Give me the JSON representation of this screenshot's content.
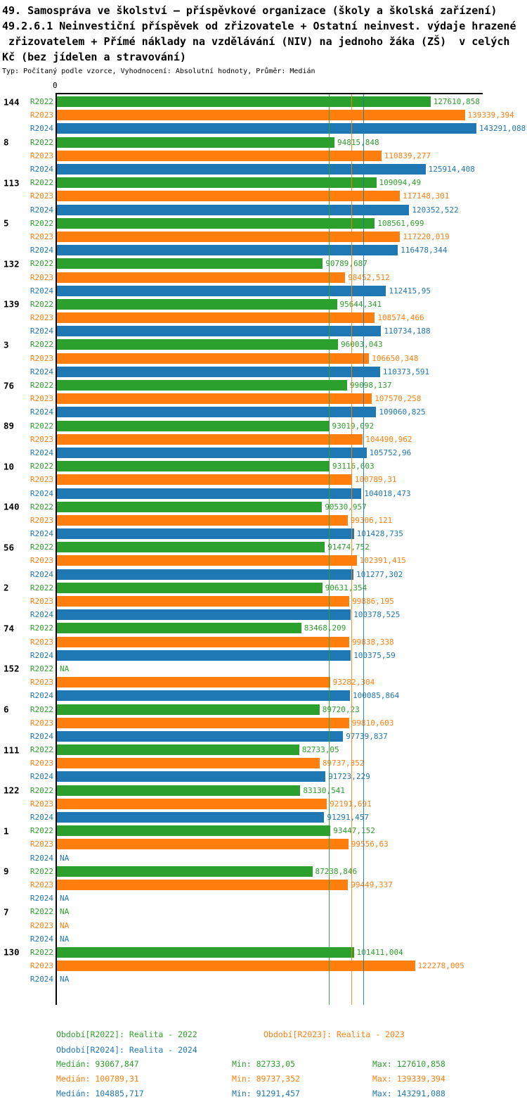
{
  "header": {
    "title_lines": [
      "49. Samospráva ve školství – příspěvkové organizace (školy a školská zařízení)",
      "49.2.6.1 Neinvestiční příspěvek od zřizovatele + Ostatní neinvest. výdaje hrazené",
      " zřizovatelem + Přímé náklady na vzdělávání (NIV) na jednoho žáka (ZŠ)  v celých",
      "Kč (bez jídelen a stravování)"
    ],
    "meta": "Typ: Počítaný podle vzorce, Vyhodnocení: Absolutní hodnoty, Průměr: Medián"
  },
  "chart_data": {
    "type": "bar",
    "orientation": "horizontal",
    "x_origin_label": "0",
    "xlim": [
      0,
      147000
    ],
    "xmax_value": 143291.088,
    "na_label": "NA",
    "grid": false,
    "legend_position": "bottom",
    "series": [
      {
        "name": "R2022",
        "color": "#2ca02c",
        "median": 93067.847
      },
      {
        "name": "R2023",
        "color": "#ff7f0e",
        "median": 100789.31
      },
      {
        "name": "R2024",
        "color": "#1f77b4",
        "median": 104885.717
      }
    ],
    "groups": [
      {
        "id": "144",
        "values": [
          127610.858,
          139339.394,
          143291.088
        ],
        "labels": [
          "127610,858",
          "139339,394",
          "143291,088"
        ]
      },
      {
        "id": "8",
        "values": [
          94815.848,
          110839.277,
          125914.408
        ],
        "labels": [
          "94815,848",
          "110839,277",
          "125914,408"
        ]
      },
      {
        "id": "113",
        "values": [
          109094.49,
          117148.301,
          120352.522
        ],
        "labels": [
          "109094,49",
          "117148,301",
          "120352,522"
        ]
      },
      {
        "id": "5",
        "values": [
          108561.699,
          117220.019,
          116478.344
        ],
        "labels": [
          "108561,699",
          "117220,019",
          "116478,344"
        ]
      },
      {
        "id": "132",
        "values": [
          90789.687,
          98452.512,
          112415.95
        ],
        "labels": [
          "90789,687",
          "98452,512",
          "112415,95"
        ]
      },
      {
        "id": "139",
        "values": [
          95644.341,
          108574.466,
          110734.188
        ],
        "labels": [
          "95644,341",
          "108574,466",
          "110734,188"
        ]
      },
      {
        "id": "3",
        "values": [
          96003.043,
          106650.348,
          110373.591
        ],
        "labels": [
          "96003,043",
          "106650,348",
          "110373,591"
        ]
      },
      {
        "id": "76",
        "values": [
          99098.137,
          107570.258,
          109060.825
        ],
        "labels": [
          "99098,137",
          "107570,258",
          "109060,825"
        ]
      },
      {
        "id": "89",
        "values": [
          93019.092,
          104490.962,
          105752.96
        ],
        "labels": [
          "93019,092",
          "104490,962",
          "105752,96"
        ]
      },
      {
        "id": "10",
        "values": [
          93116.603,
          100789.31,
          104018.473
        ],
        "labels": [
          "93116,603",
          "100789,31",
          "104018,473"
        ]
      },
      {
        "id": "140",
        "values": [
          90530.957,
          99306.121,
          101428.735
        ],
        "labels": [
          "90530,957",
          "99306,121",
          "101428,735"
        ]
      },
      {
        "id": "56",
        "values": [
          91474.752,
          102391.415,
          101277.302
        ],
        "labels": [
          "91474,752",
          "102391,415",
          "101277,302"
        ]
      },
      {
        "id": "2",
        "values": [
          90631.354,
          99886.195,
          100378.525
        ],
        "labels": [
          "90631,354",
          "99886,195",
          "100378,525"
        ]
      },
      {
        "id": "74",
        "values": [
          83468.209,
          99838.338,
          100375.59
        ],
        "labels": [
          "83468,209",
          "99838,338",
          "100375,59"
        ]
      },
      {
        "id": "152",
        "values": [
          null,
          93282.304,
          100085.864
        ],
        "labels": [
          "NA",
          "93282,304",
          "100085,864"
        ]
      },
      {
        "id": "6",
        "values": [
          89720.23,
          99810.603,
          97739.837
        ],
        "labels": [
          "89720,23",
          "99810,603",
          "97739,837"
        ]
      },
      {
        "id": "111",
        "values": [
          82733.05,
          89737.352,
          91723.229
        ],
        "labels": [
          "82733,05",
          "89737,352",
          "91723,229"
        ]
      },
      {
        "id": "122",
        "values": [
          83130.541,
          92191.691,
          91291.457
        ],
        "labels": [
          "83130,541",
          "92191,691",
          "91291,457"
        ]
      },
      {
        "id": "1",
        "values": [
          93447.152,
          99556.63,
          null
        ],
        "labels": [
          "93447,152",
          "99556,63",
          "NA"
        ]
      },
      {
        "id": "9",
        "values": [
          87238.846,
          99449.337,
          null
        ],
        "labels": [
          "87238,846",
          "99449,337",
          "NA"
        ]
      },
      {
        "id": "7",
        "values": [
          null,
          null,
          null
        ],
        "labels": [
          "NA",
          "NA",
          "NA"
        ]
      },
      {
        "id": "130",
        "values": [
          101411.004,
          122278.005,
          null
        ],
        "labels": [
          "101411,004",
          "122278,005",
          "NA"
        ]
      }
    ],
    "legend": [
      {
        "label": "Období[R2022]: Realita - 2022",
        "color": "#2ca02c"
      },
      {
        "label": "Období[R2023]: Realita - 2023",
        "color": "#ff7f0e"
      },
      {
        "label": "Období[R2024]: Realita - 2024",
        "color": "#1f77b4"
      }
    ],
    "stats": [
      {
        "median": "Medián: 93067,847",
        "min": "Min: 82733,05",
        "max": "Max: 127610,858",
        "color": "#2ca02c"
      },
      {
        "median": "Medián: 100789,31",
        "min": "Min: 89737,352",
        "max": "Max: 139339,394",
        "color": "#ff7f0e"
      },
      {
        "median": "Medián: 104885,717",
        "min": "Min: 91291,457",
        "max": "Max: 143291,088",
        "color": "#1f77b4"
      }
    ]
  }
}
